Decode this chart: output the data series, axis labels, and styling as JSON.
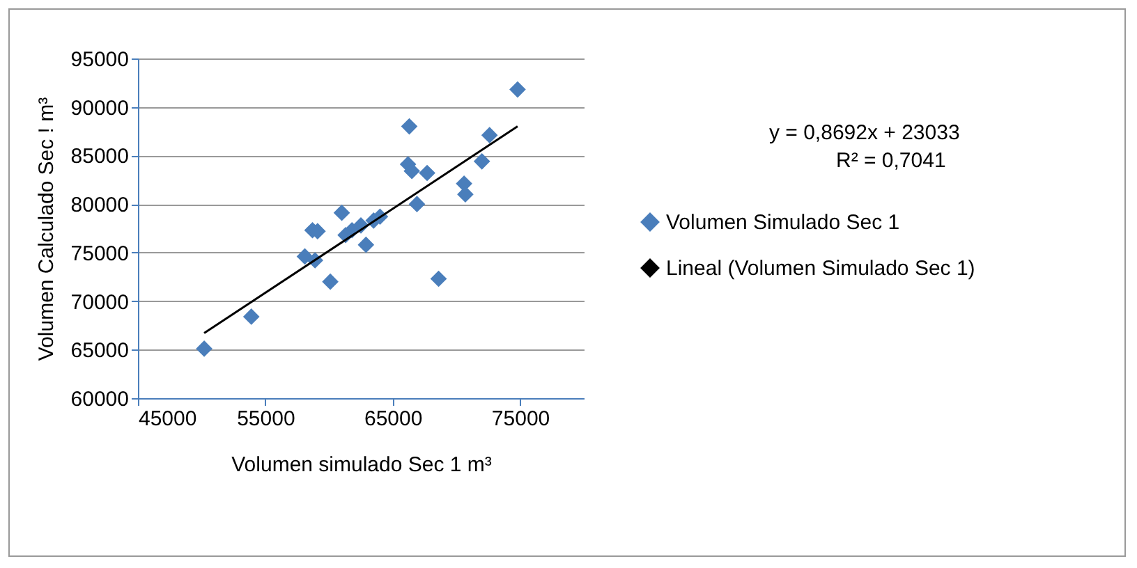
{
  "chart_data": {
    "type": "scatter",
    "xlabel": "Volumen simulado Sec 1 m³",
    "ylabel": "Volumen Calculado Sec ! m³",
    "annotations": [
      "y = 0,8692x + 23033",
      "R² = 0,7041"
    ],
    "xlim": [
      45000,
      80000
    ],
    "xticks": [
      45000,
      55000,
      65000,
      75000
    ],
    "ylim": [
      60000,
      95000
    ],
    "yticks": [
      60000,
      65000,
      70000,
      75000,
      80000,
      85000,
      90000,
      95000
    ],
    "grid": "y",
    "legend": "right",
    "series": [
      {
        "name": "Volumen Simulado Sec 1",
        "color": "#4a7ebb",
        "marker": "diamond",
        "x": [
          50200,
          53900,
          58100,
          58900,
          58700,
          59100,
          60100,
          61000,
          61300,
          61800,
          62500,
          62900,
          63500,
          64000,
          66200,
          66500,
          66300,
          66900,
          67700,
          68600,
          70600,
          70700,
          72000,
          72600,
          74800
        ],
        "values": [
          65100,
          68400,
          74600,
          74200,
          77300,
          77200,
          72000,
          79100,
          76800,
          77300,
          77800,
          75800,
          78300,
          78700,
          84100,
          83400,
          88000,
          80000,
          83200,
          72300,
          82100,
          81000,
          84400,
          87100,
          91800
        ]
      },
      {
        "name": "Lineal (Volumen Simulado Sec 1)",
        "color": "#000000",
        "type": "line",
        "marker": "none",
        "line_style": "solid",
        "x": [
          50200,
          74800
        ],
        "values": [
          66700,
          88000
        ]
      }
    ]
  }
}
